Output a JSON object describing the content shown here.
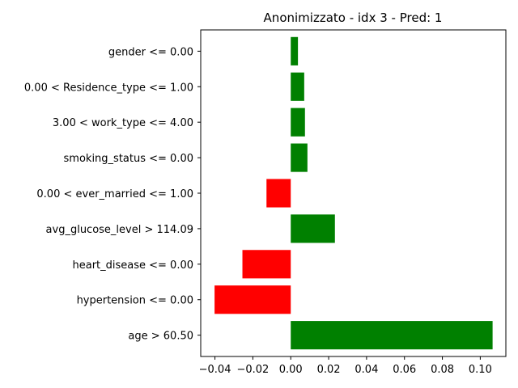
{
  "chart_data": {
    "type": "bar",
    "orientation": "horizontal",
    "title": "Anonimizzato - idx 3 - Pred: 1",
    "xlabel": "",
    "ylabel": "",
    "categories": [
      "age > 60.50",
      "hypertension <= 0.00",
      "heart_disease <= 0.00",
      "avg_glucose_level > 114.09",
      "0.00 < ever_married <= 1.00",
      "smoking_status <= 0.00",
      "3.00 < work_type <= 4.00",
      "0.00 < Residence_type <= 1.00",
      "gender <= 0.00"
    ],
    "values": [
      0.1065,
      -0.0402,
      -0.0255,
      0.0233,
      -0.0128,
      0.0088,
      0.0075,
      0.0071,
      0.0038
    ],
    "xlim": [
      -0.0475,
      0.1135
    ],
    "xticks": [
      -0.04,
      -0.02,
      0.0,
      0.02,
      0.04,
      0.06,
      0.08,
      0.1
    ],
    "xtick_labels": [
      "−0.04",
      "−0.02",
      "0.00",
      "0.02",
      "0.04",
      "0.06",
      "0.08",
      "0.10"
    ],
    "grid": false,
    "colors": {
      "positive": "#008000",
      "negative": "#ff0000",
      "axis": "#000000"
    }
  }
}
